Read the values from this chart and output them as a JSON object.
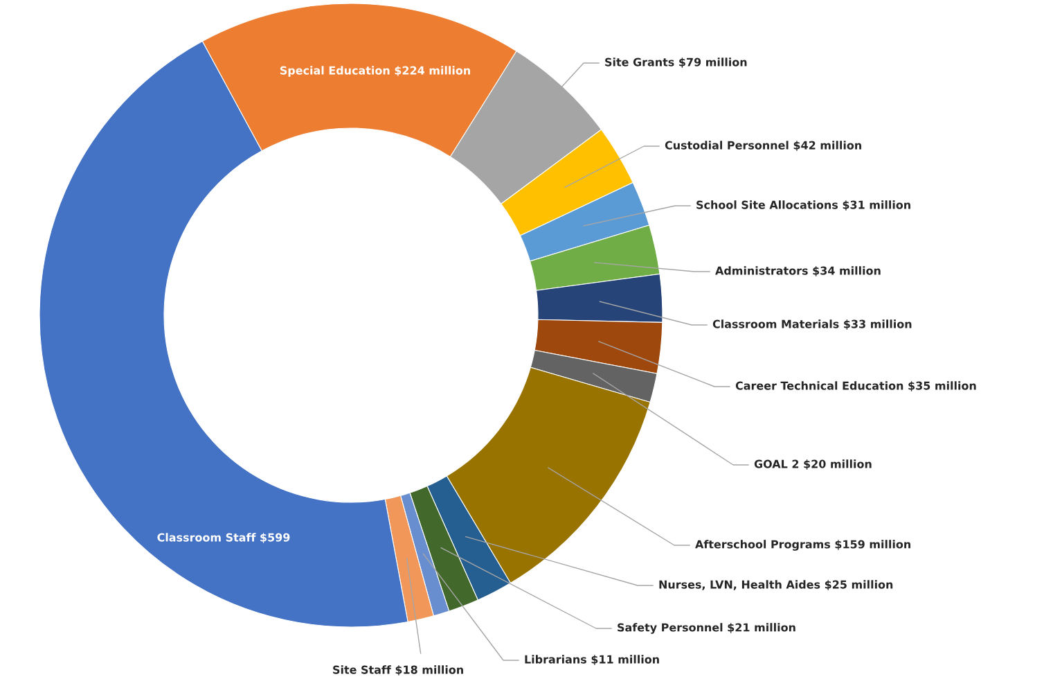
{
  "chart_data": {
    "type": "donut",
    "categories": [
      "Special Education",
      "Site Grants",
      "Custodial Personnel",
      "School Site Allocations",
      "Administrators",
      "Classroom Materials",
      "Career Technical Education",
      "GOAL 2",
      "Afterschool Programs",
      "Nurses, LVN, Health Aides",
      "Safety Personnel",
      "Librarians",
      "Site Staff",
      "Classroom Staff"
    ],
    "values": [
      224,
      79,
      42,
      31,
      34,
      33,
      35,
      20,
      159,
      25,
      21,
      11,
      18,
      599
    ],
    "value_labels": [
      "$224 million",
      "$79 million",
      "$42 million",
      "$31 million",
      "$34 million",
      "$33 million",
      "$35 million",
      "$20 million",
      "$159 million",
      "$25 million",
      "$21 million",
      "$11 million",
      "$18 million",
      "$599"
    ],
    "colors": [
      "#ed7d31",
      "#a5a5a5",
      "#ffc000",
      "#5b9bd5",
      "#70ad47",
      "#264478",
      "#9e480e",
      "#636363",
      "#997300",
      "#255e91",
      "#43682b",
      "#698ed0",
      "#f1975a",
      "#4472c4"
    ],
    "legend": false
  }
}
